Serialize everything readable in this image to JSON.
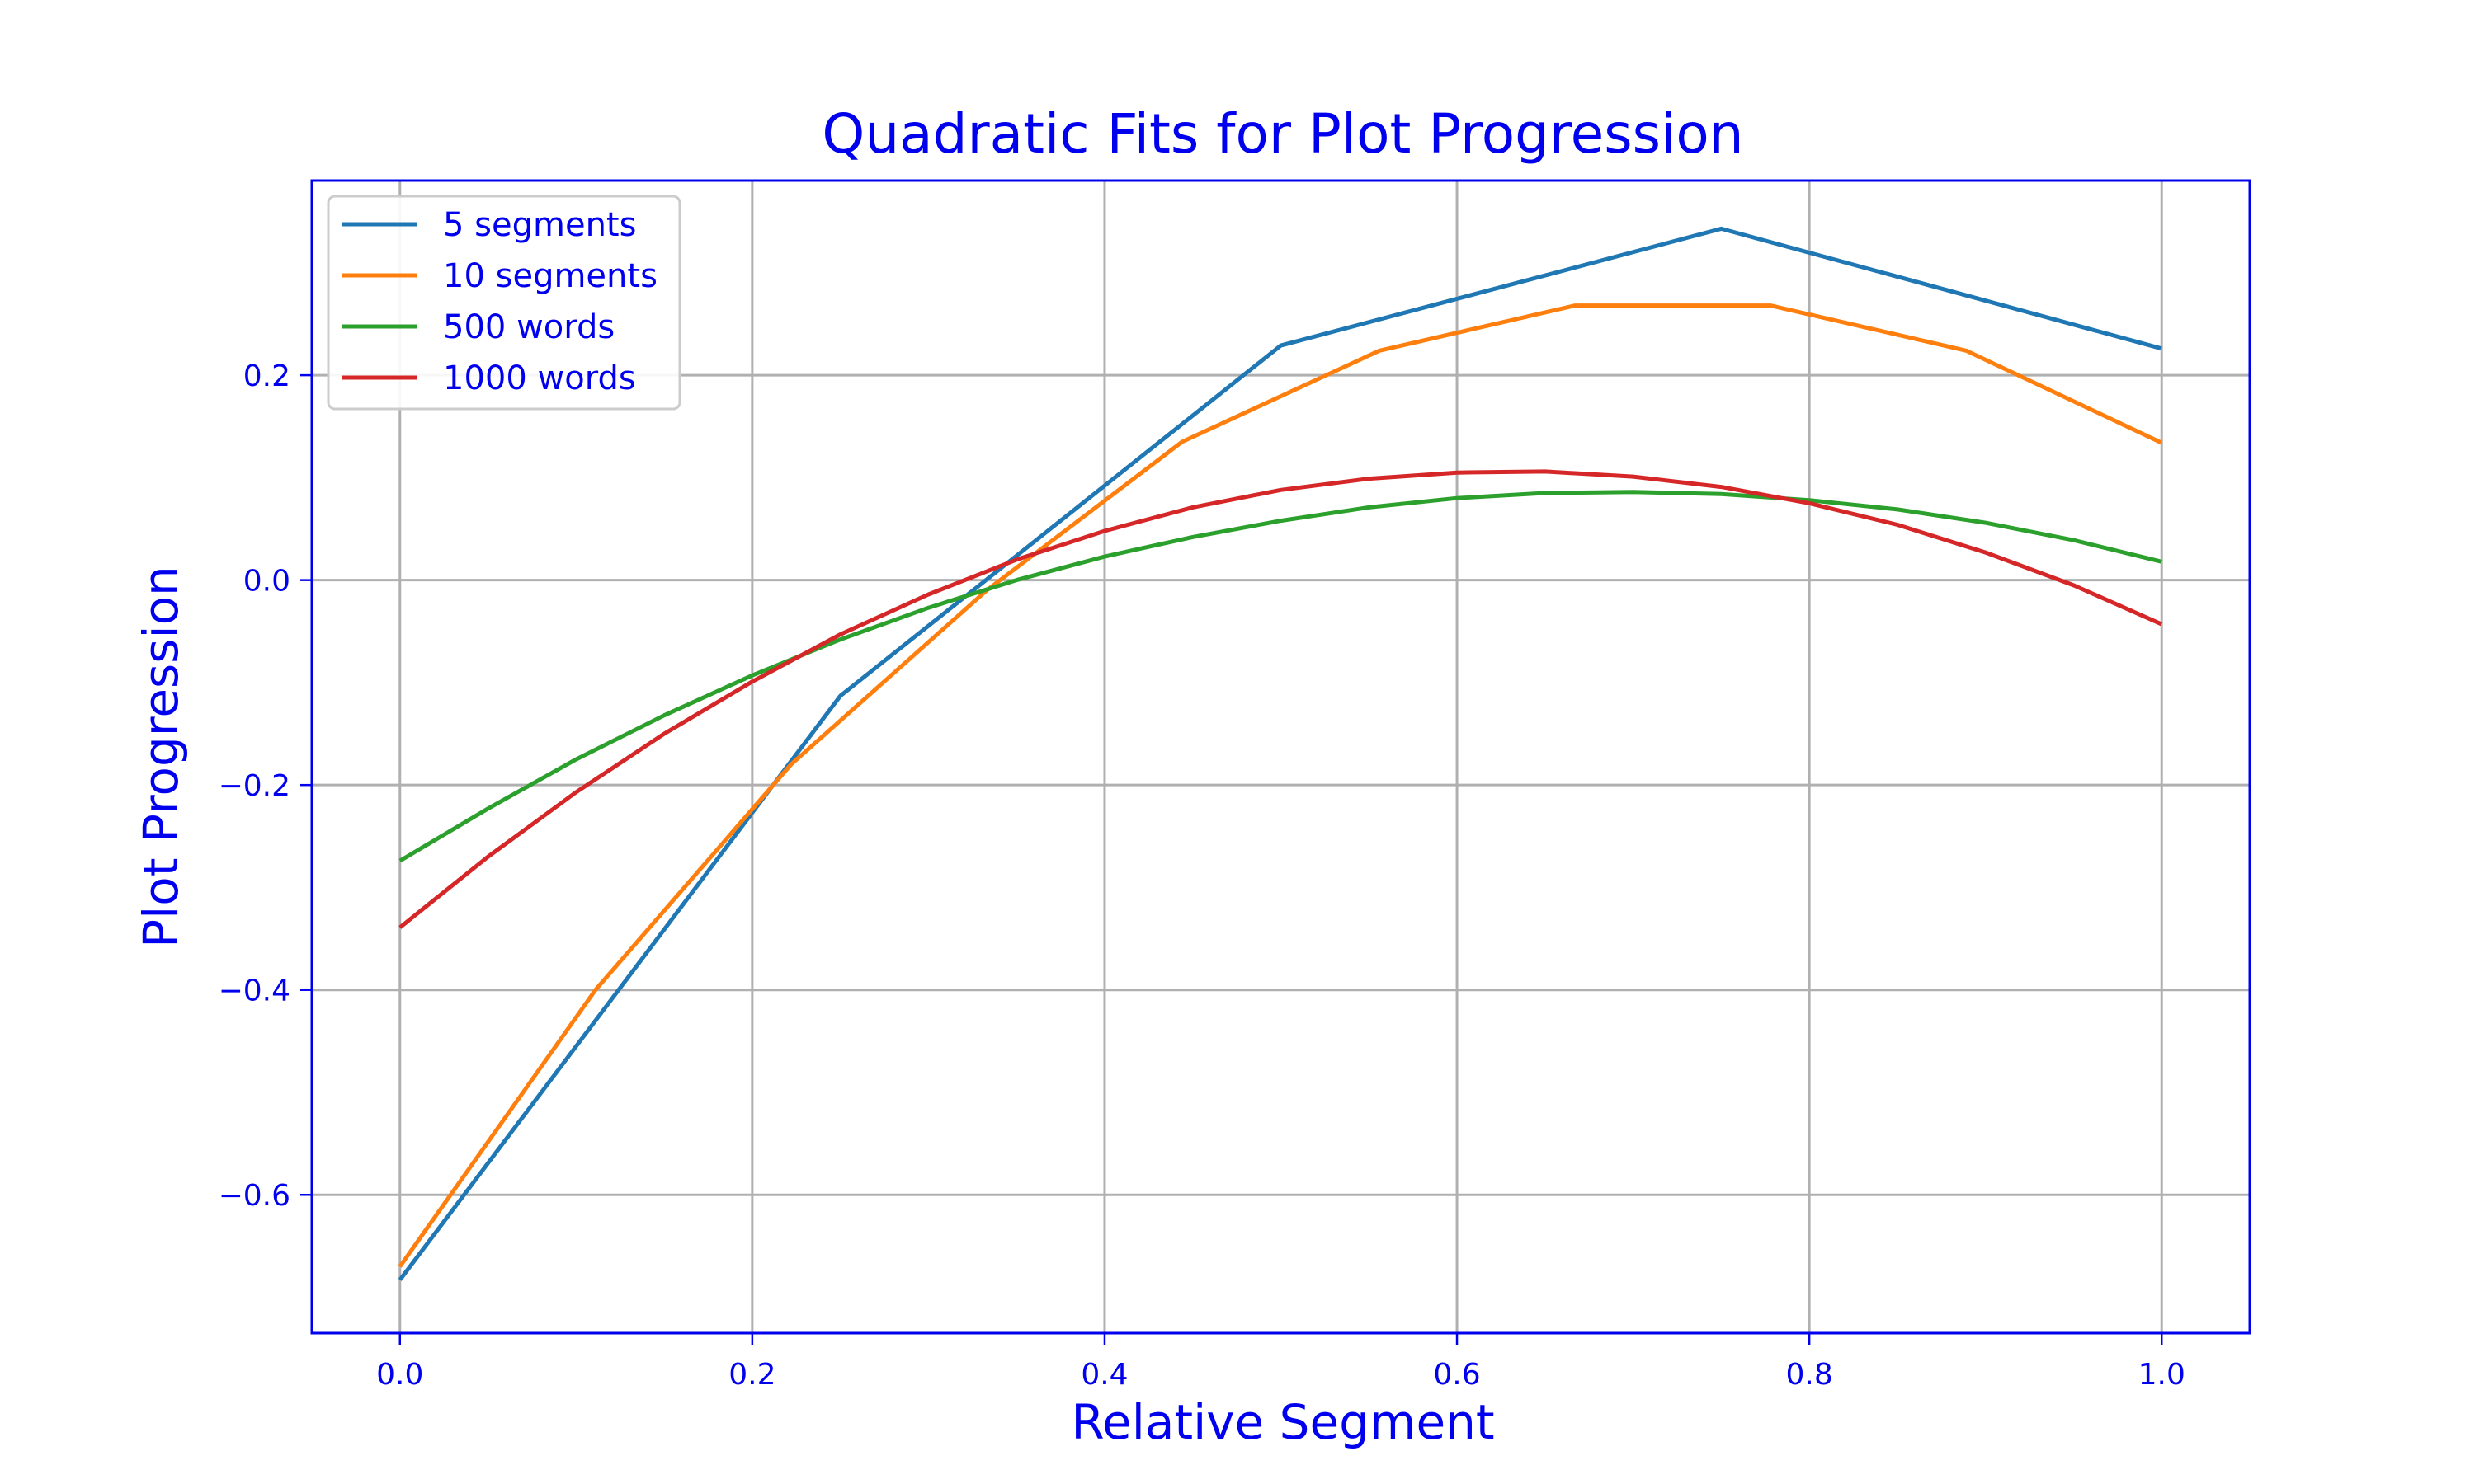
{
  "chart_data": {
    "type": "line",
    "title": "Quadratic Fits for Plot Progression",
    "xlabel": "Relative Segment",
    "ylabel": "Plot Progression",
    "xlim": [
      -0.05,
      1.05
    ],
    "ylim": [
      -0.735,
      0.39
    ],
    "xticks": [
      0.0,
      0.2,
      0.4,
      0.6,
      0.8,
      1.0
    ],
    "xtick_labels": [
      "0.0",
      "0.2",
      "0.4",
      "0.6",
      "0.8",
      "1.0"
    ],
    "yticks": [
      -0.6,
      -0.4,
      -0.2,
      0.0,
      0.2
    ],
    "ytick_labels": [
      "−0.6",
      "−0.4",
      "−0.2",
      "0.0",
      "0.2"
    ],
    "grid": true,
    "legend_position": "upper-left",
    "colors": {
      "text": "#0000ee",
      "frame": "#0000ee",
      "grid": "#b0b0b0"
    },
    "series": [
      {
        "name": "5 segments",
        "color": "#1f77b4",
        "x": [
          0.0,
          0.25,
          0.5,
          0.75,
          1.0
        ],
        "y": [
          -0.683,
          -0.113,
          0.229,
          0.343,
          0.226
        ]
      },
      {
        "name": "10 segments",
        "color": "#ff7f0e",
        "x": [
          0.0,
          0.111,
          0.222,
          0.333,
          0.444,
          0.556,
          0.667,
          0.778,
          0.889,
          1.0
        ],
        "y": [
          -0.67,
          -0.4,
          -0.18,
          -0.01,
          0.135,
          0.224,
          0.268,
          0.268,
          0.224,
          0.134
        ]
      },
      {
        "name": "500 words",
        "color": "#2ca02c",
        "x": [
          0.0,
          0.05,
          0.1,
          0.15,
          0.2,
          0.25,
          0.3,
          0.35,
          0.4,
          0.45,
          0.5,
          0.55,
          0.6,
          0.65,
          0.7,
          0.75,
          0.8,
          0.85,
          0.9,
          0.95,
          1.0
        ],
        "y": [
          -0.274,
          -0.223,
          -0.175,
          -0.132,
          -0.093,
          -0.058,
          -0.027,
          0.0,
          0.023,
          0.042,
          0.058,
          0.071,
          0.08,
          0.085,
          0.086,
          0.084,
          0.078,
          0.069,
          0.056,
          0.039,
          0.018
        ]
      },
      {
        "name": "1000 words",
        "color": "#d62728",
        "x": [
          0.0,
          0.05,
          0.1,
          0.15,
          0.2,
          0.25,
          0.3,
          0.35,
          0.4,
          0.45,
          0.5,
          0.55,
          0.6,
          0.65,
          0.7,
          0.75,
          0.8,
          0.85,
          0.9,
          0.95,
          1.0
        ],
        "y": [
          -0.339,
          -0.27,
          -0.207,
          -0.15,
          -0.099,
          -0.053,
          -0.014,
          0.02,
          0.048,
          0.071,
          0.088,
          0.099,
          0.105,
          0.106,
          0.101,
          0.091,
          0.075,
          0.054,
          0.027,
          -0.005,
          -0.043
        ]
      }
    ]
  }
}
